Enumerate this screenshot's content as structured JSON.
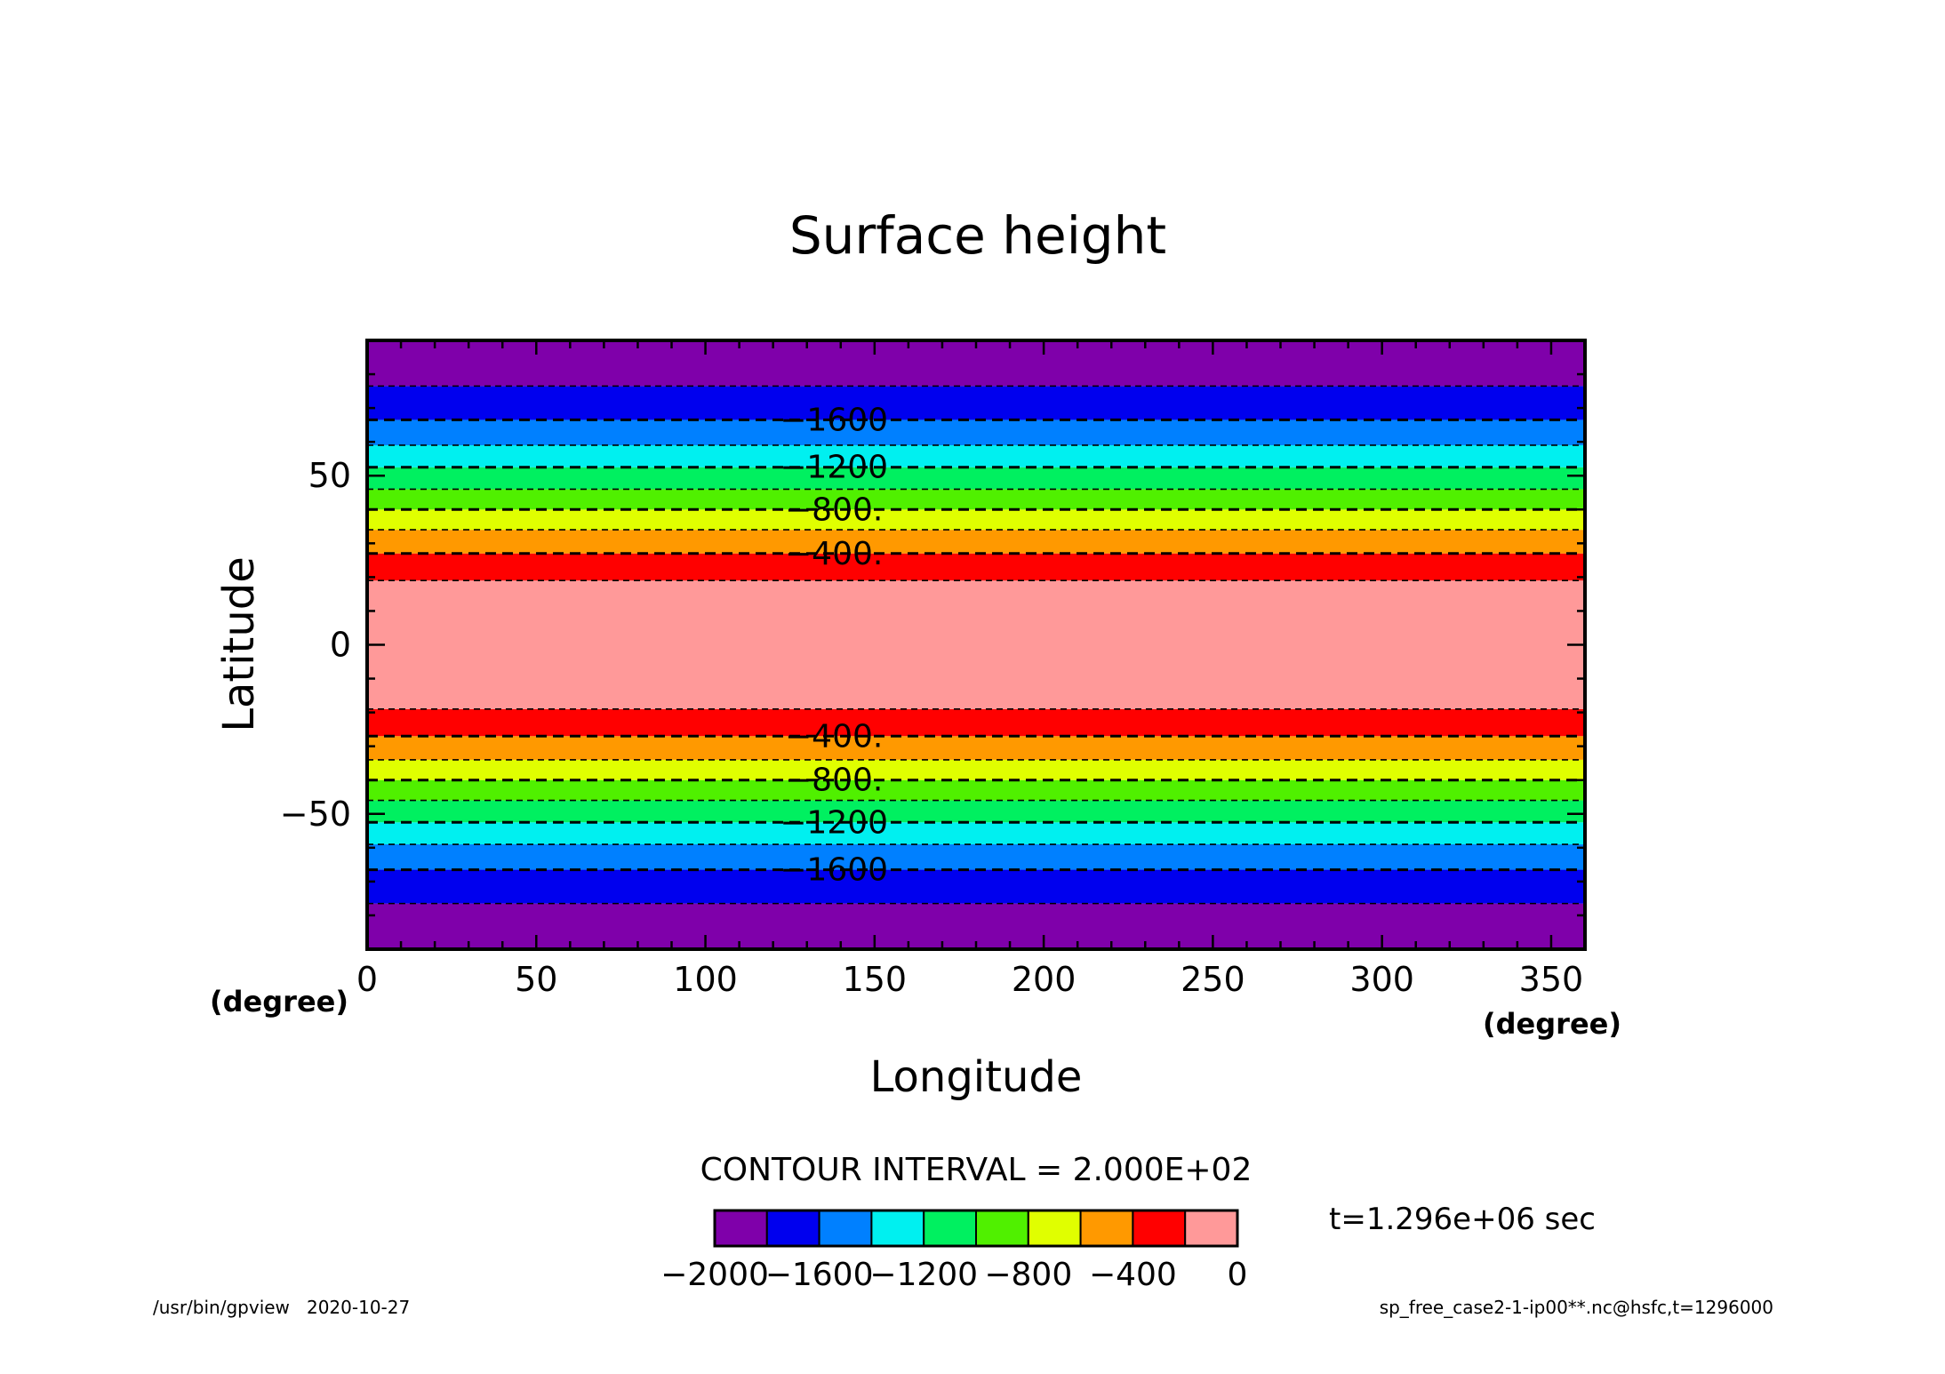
{
  "chart_data": {
    "type": "heatmap",
    "title": "Surface height",
    "xlabel": "Longitude",
    "ylabel": "Latitude",
    "x_unit": "(degree)",
    "y_unit": "(degree)",
    "xlim": [
      0,
      360
    ],
    "ylim": [
      -90,
      90
    ],
    "xticks": [
      0,
      50,
      100,
      150,
      200,
      250,
      300,
      350
    ],
    "yticks": [
      -50,
      0,
      50
    ],
    "xtick_labels": [
      "0",
      "50",
      "100",
      "150",
      "200",
      "250",
      "300",
      "350"
    ],
    "ytick_labels": [
      "−50",
      "0",
      "50"
    ],
    "contour_interval_text": "CONTOUR INTERVAL = 2.000E+02",
    "time_text": "t=1.296e+06 sec",
    "footer_left": "/usr/bin/gpview   2020-10-27",
    "footer_right": "sp_free_case2-1-ip00**.nc@hsfc,t=1296000",
    "colorbar": {
      "colors": [
        "#7f00aa",
        "#0000ee",
        "#0080ff",
        "#00f0f0",
        "#00f060",
        "#50f000",
        "#e0ff00",
        "#ff9900",
        "#ff0000",
        "#ff9999"
      ],
      "labels": [
        "−2000",
        "−1600",
        "−1200",
        "−800",
        "−400",
        "0"
      ]
    },
    "bands": [
      {
        "lat_min": -90,
        "lat_max": -76.5,
        "level": "<-1800",
        "color": "#7f00aa"
      },
      {
        "lat_min": -76.5,
        "lat_max": -66.5,
        "level": "-1800..-1600",
        "color": "#0000ee"
      },
      {
        "lat_min": -66.5,
        "lat_max": -59,
        "level": "-1600..-1400",
        "color": "#0080ff"
      },
      {
        "lat_min": -59,
        "lat_max": -52.5,
        "level": "-1400..-1200",
        "color": "#00f0f0"
      },
      {
        "lat_min": -52.5,
        "lat_max": -46,
        "level": "-1200..-1000",
        "color": "#00f060"
      },
      {
        "lat_min": -46,
        "lat_max": -40,
        "level": "-1000..-800",
        "color": "#50f000"
      },
      {
        "lat_min": -40,
        "lat_max": -34,
        "level": "-800..-600",
        "color": "#e0ff00"
      },
      {
        "lat_min": -34,
        "lat_max": -27,
        "level": "-600..-400",
        "color": "#ff9900"
      },
      {
        "lat_min": -27,
        "lat_max": -19,
        "level": "-400..-200",
        "color": "#ff0000"
      },
      {
        "lat_min": -19,
        "lat_max": 19,
        "level": ">-200",
        "color": "#ff9999"
      },
      {
        "lat_min": 19,
        "lat_max": 27,
        "level": "-400..-200",
        "color": "#ff0000"
      },
      {
        "lat_min": 27,
        "lat_max": 34,
        "level": "-600..-400",
        "color": "#ff9900"
      },
      {
        "lat_min": 34,
        "lat_max": 40,
        "level": "-800..-600",
        "color": "#e0ff00"
      },
      {
        "lat_min": 40,
        "lat_max": 46,
        "level": "-1000..-800",
        "color": "#50f000"
      },
      {
        "lat_min": 46,
        "lat_max": 52.5,
        "level": "-1200..-1000",
        "color": "#00f060"
      },
      {
        "lat_min": 52.5,
        "lat_max": 59,
        "level": "-1400..-1200",
        "color": "#00f0f0"
      },
      {
        "lat_min": 59,
        "lat_max": 66.5,
        "level": "-1600..-1400",
        "color": "#0080ff"
      },
      {
        "lat_min": 66.5,
        "lat_max": 76.5,
        "level": "-1800..-1600",
        "color": "#0000ee"
      },
      {
        "lat_min": 76.5,
        "lat_max": 90,
        "level": "<-1800",
        "color": "#7f00aa"
      }
    ],
    "contours": [
      {
        "lat": 76.5,
        "value": -1800,
        "label": ""
      },
      {
        "lat": 66.5,
        "value": -1600,
        "label": "−1600"
      },
      {
        "lat": 59,
        "value": -1400,
        "label": ""
      },
      {
        "lat": 52.5,
        "value": -1200,
        "label": "−1200"
      },
      {
        "lat": 46,
        "value": -1000,
        "label": ""
      },
      {
        "lat": 40,
        "value": -800,
        "label": "−800."
      },
      {
        "lat": 34,
        "value": -600,
        "label": ""
      },
      {
        "lat": 27,
        "value": -400,
        "label": "−400."
      },
      {
        "lat": 19,
        "value": -200,
        "label": ""
      },
      {
        "lat": -19,
        "value": -200,
        "label": ""
      },
      {
        "lat": -27,
        "value": -400,
        "label": "−400."
      },
      {
        "lat": -34,
        "value": -600,
        "label": ""
      },
      {
        "lat": -40,
        "value": -800,
        "label": "−800."
      },
      {
        "lat": -46,
        "value": -1000,
        "label": ""
      },
      {
        "lat": -52.5,
        "value": -1200,
        "label": "−1200"
      },
      {
        "lat": -59,
        "value": -1400,
        "label": ""
      },
      {
        "lat": -66.5,
        "value": -1600,
        "label": "−1600"
      },
      {
        "lat": -76.5,
        "value": -1800,
        "label": ""
      }
    ]
  }
}
